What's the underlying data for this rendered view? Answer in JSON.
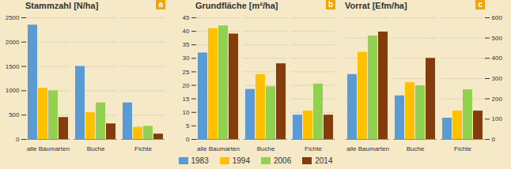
{
  "chart_data": [
    {
      "type": "bar",
      "title": "Stammzahl [N/ha]",
      "annotations": [
        "a"
      ],
      "categories": [
        "alle Baumarten",
        "Buche",
        "Fichte"
      ],
      "series": [
        {
          "name": "1983",
          "color": "#5b9bd5",
          "values": [
            2350,
            1500,
            750
          ]
        },
        {
          "name": "1994",
          "color": "#ffc000",
          "values": [
            1050,
            550,
            250
          ]
        },
        {
          "name": "2006",
          "color": "#92d050",
          "values": [
            1000,
            750,
            270
          ]
        },
        {
          "name": "2014",
          "color": "#843c0c",
          "values": [
            450,
            320,
            110
          ]
        }
      ],
      "ylim": [
        0,
        2500
      ],
      "yticks": [
        0,
        500,
        1000,
        1500,
        2000,
        2500
      ],
      "grid": true,
      "legend": "bottom"
    },
    {
      "type": "bar",
      "title": "Grundfläche [m²/ha]",
      "annotations": [
        "b"
      ],
      "categories": [
        "alle Baumarten",
        "Buche",
        "Fichte"
      ],
      "series": [
        {
          "name": "1983",
          "color": "#5b9bd5",
          "values": [
            32,
            18.5,
            9
          ]
        },
        {
          "name": "1994",
          "color": "#ffc000",
          "values": [
            41,
            24,
            10.5
          ]
        },
        {
          "name": "2006",
          "color": "#92d050",
          "values": [
            42,
            19.5,
            20.5
          ]
        },
        {
          "name": "2014",
          "color": "#843c0c",
          "values": [
            39,
            28,
            9
          ]
        }
      ],
      "ylim": [
        0,
        45
      ],
      "yticks": [
        0,
        5,
        10,
        15,
        20,
        25,
        30,
        35,
        40,
        45
      ],
      "grid": true,
      "legend": "bottom"
    },
    {
      "type": "bar",
      "title": "Vorrat [Efm/ha]",
      "annotations": [
        "c"
      ],
      "categories": [
        "alle Baumarten",
        "Buche",
        "Fichte"
      ],
      "series": [
        {
          "name": "1983",
          "color": "#5b9bd5",
          "values": [
            320,
            215,
            105
          ]
        },
        {
          "name": "1994",
          "color": "#ffc000",
          "values": [
            430,
            280,
            140
          ]
        },
        {
          "name": "2006",
          "color": "#92d050",
          "values": [
            510,
            265,
            245
          ]
        },
        {
          "name": "2014",
          "color": "#843c0c",
          "values": [
            530,
            400,
            140
          ]
        }
      ],
      "ylim": [
        0,
        600
      ],
      "yticks": [
        0,
        100,
        200,
        300,
        400,
        500,
        600
      ],
      "grid": true,
      "legend": "bottom"
    }
  ]
}
